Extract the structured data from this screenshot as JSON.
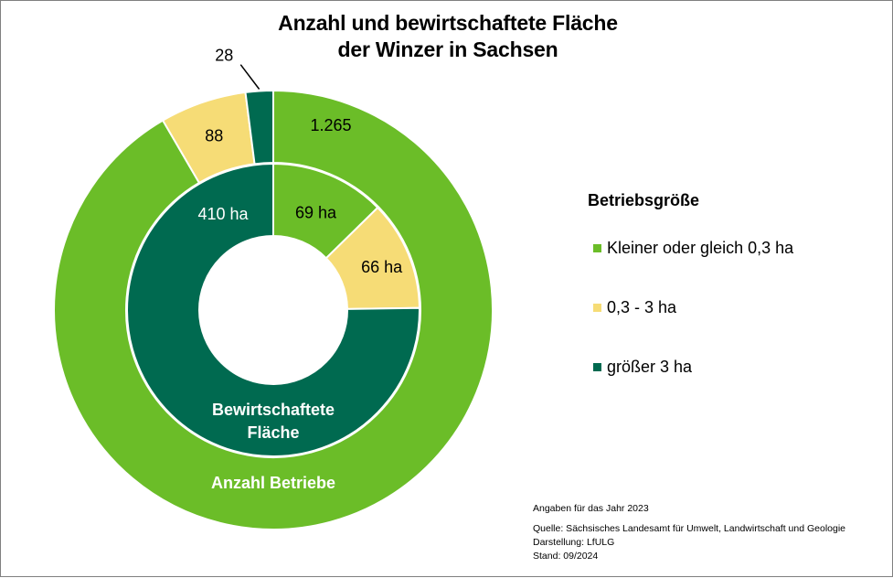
{
  "chart_data": {
    "type": "donut",
    "title": "Anzahl und bewirtschaftete Fläche der Winzer in Sachsen",
    "title_lines": [
      "Anzahl und bewirtschaftete Fläche",
      "der Winzer in Sachsen"
    ],
    "legend_title": "Betriebsgröße",
    "legend_position": "right",
    "categories": [
      "Kleiner oder gleich 0,3 ha",
      "0,3 - 3 ha",
      "größer 3 ha"
    ],
    "colors": [
      "#6bbd28",
      "#f6dc76",
      "#006a50"
    ],
    "series": [
      {
        "name": "Anzahl Betriebe",
        "ring": "outer",
        "values": [
          1265,
          88,
          28
        ],
        "labels": [
          "1.265",
          "88",
          "28"
        ]
      },
      {
        "name": "Bewirtschaftete Fläche",
        "ring": "inner",
        "name_lines": [
          "Bewirtschaftete",
          "Fläche"
        ],
        "values": [
          69,
          66,
          410
        ],
        "unit": "ha",
        "labels": [
          "69 ha",
          "66 ha",
          "410 ha"
        ]
      }
    ]
  },
  "footnotes": {
    "year": "Angaben für das Jahr 2023",
    "source": "Quelle:  Sächsisches Landesamt für Umwelt, Landwirtschaft und Geologie",
    "author": "Darstellung: LfULG",
    "date": "Stand: 09/2024"
  }
}
